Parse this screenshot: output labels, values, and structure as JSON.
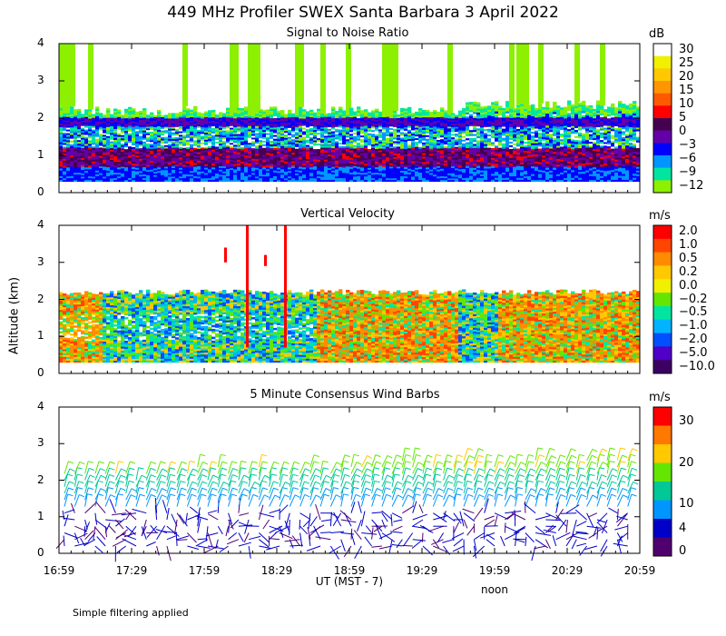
{
  "title": "449 MHz Profiler SWEX Santa Barbara  3 April 2022",
  "ylabel": "Altitude (km)",
  "xlabel": "UT  (MST - 7)",
  "noon_label": "noon",
  "footnote": "Simple filtering applied",
  "x_ticks": [
    "16:59",
    "17:29",
    "17:59",
    "18:29",
    "18:59",
    "19:29",
    "19:59",
    "20:29",
    "20:59"
  ],
  "chart_data": [
    {
      "type": "heatmap",
      "title": "Signal to Noise Ratio",
      "ylabel": "Altitude (km)",
      "ylim": [
        0,
        4
      ],
      "y_ticks": [
        "0",
        "1",
        "2",
        "3",
        "4"
      ],
      "xlim": [
        "16:59",
        "20:59"
      ],
      "colorbar": {
        "unit": "dB",
        "labels": [
          "30",
          "25",
          "20",
          "15",
          "10",
          "5",
          "0",
          "−3",
          "−6",
          "−9",
          "−12"
        ],
        "colors": [
          "#ffffff",
          "#f0f000",
          "#ffc800",
          "#ff9600",
          "#ff5a00",
          "#ff0000",
          "#460050",
          "#6400aa",
          "#0000ff",
          "#0096ff",
          "#00e6a0",
          "#8cf000"
        ]
      },
      "features": {
        "layer_top_km": 2.2,
        "band_top_km": 1.25,
        "band_bottom_km": 0.7,
        "data_bottom_km": 0.3,
        "secondary_band_km": 1.9
      }
    },
    {
      "type": "heatmap",
      "title": "Vertical Velocity",
      "ylim": [
        0,
        4
      ],
      "y_ticks": [
        "0",
        "1",
        "2",
        "3",
        "4"
      ],
      "colorbar": {
        "unit": "m/s",
        "labels": [
          "2.0",
          "1.0",
          "0.5",
          "0.2",
          "0.0",
          "−0.2",
          "−0.5",
          "−1.0",
          "−2.0",
          "−5.0",
          "−10.0"
        ],
        "colors": [
          "#ff0000",
          "#ff4600",
          "#ff8c00",
          "#ffc800",
          "#f0f000",
          "#64e600",
          "#00e6a0",
          "#00b4ff",
          "#0050ff",
          "#5000c8",
          "#3c0064"
        ]
      },
      "features": {
        "layer_top_km": 2.2,
        "data_bottom_km": 0.3
      }
    },
    {
      "type": "wind-barbs",
      "title": "5 Minute Consensus Wind Barbs",
      "ylim": [
        0,
        4
      ],
      "y_ticks": [
        "0",
        "1",
        "2",
        "3",
        "4"
      ],
      "colorbar": {
        "unit": "m/s",
        "labels": [
          "30",
          "20",
          "10",
          "4",
          "0"
        ],
        "colors": [
          "#ff0000",
          "#ff7800",
          "#ffc800",
          "#64e600",
          "#00c896",
          "#0096ff",
          "#0000c8",
          "#50006e"
        ]
      },
      "features": {
        "barb_top_km": 2.7,
        "barb_bottom_km": 0.1
      }
    }
  ]
}
